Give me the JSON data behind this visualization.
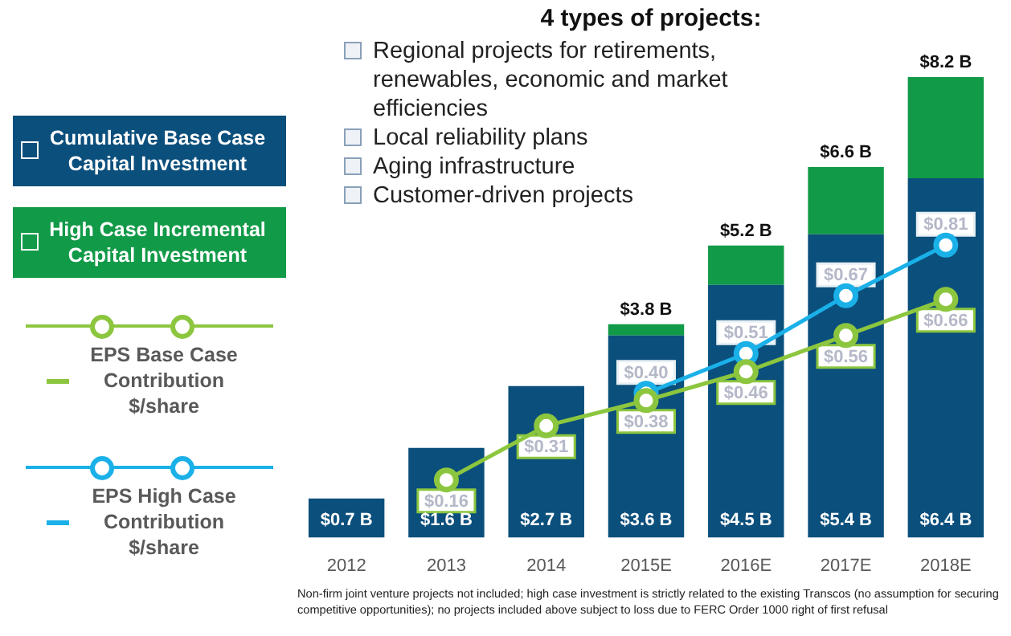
{
  "chart_data": {
    "type": "bar",
    "title": "4 types of projects:",
    "categories": [
      "2012",
      "2013",
      "2014",
      "2015E",
      "2016E",
      "2017E",
      "2018E"
    ],
    "stacked": true,
    "tick_labels": "x",
    "grid": false,
    "legend": "left",
    "marker": "circle",
    "series": [
      {
        "name": "Cumulative Base Case Capital Investment",
        "color": "#0b4f7c",
        "values": [
          0.7,
          1.6,
          2.7,
          3.6,
          4.5,
          5.4,
          6.4
        ],
        "value_labels": [
          "$0.7 B",
          "$1.6 B",
          "$2.7 B",
          "$3.6 B",
          "$4.5 B",
          "$5.4 B",
          "$6.4 B"
        ]
      },
      {
        "name": "High Case Incremental Capital Investment",
        "color": "#119a48",
        "values": [
          null,
          null,
          null,
          0.2,
          0.7,
          1.2,
          1.8
        ]
      },
      {
        "name": "EPS Base Case Contribution $/share",
        "type": "line",
        "axis": "y2",
        "color": "#8cc63f",
        "values": [
          null,
          0.16,
          0.31,
          0.38,
          0.46,
          0.56,
          0.66
        ],
        "value_labels": [
          null,
          "$0.16",
          "$0.31",
          "$0.38",
          "$0.46",
          "$0.56",
          "$0.66"
        ]
      },
      {
        "name": "EPS High Case Contribution $/share",
        "type": "line",
        "axis": "y2",
        "color": "#1ab0e8",
        "values": [
          null,
          null,
          null,
          0.4,
          0.51,
          0.67,
          0.81
        ],
        "value_labels": [
          null,
          null,
          null,
          "$0.40",
          "$0.51",
          "$0.67",
          "$0.81"
        ]
      }
    ],
    "totals": [
      null,
      null,
      null,
      "$3.8 B",
      "$5.2 B",
      "$6.6 B",
      "$8.2 B"
    ],
    "annotations": [
      "Regional projects for retirements, renewables, economic and market efficiencies",
      "Local reliability plans",
      "Aging infrastructure",
      "Customer-driven projects",
      "Non-firm joint venture projects not included; high case investment is strictly related to the existing Transcos (no assumption for securing competitive opportunities); no projects included above subject to loss due to FERC Order 1000 right of first refusal"
    ]
  }
}
